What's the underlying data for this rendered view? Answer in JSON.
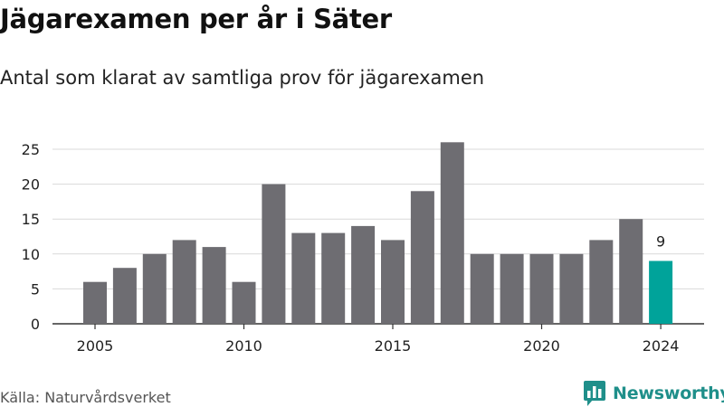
{
  "header": {
    "title": "Jägarexamen per år i Säter",
    "subtitle": "Antal som klarat av samtliga prov för jägarexamen"
  },
  "footer": {
    "source": "Källa: Naturvårdsverket",
    "brand": "Newsworthy",
    "brand_icon": "bar-chart-speech-bubble-icon"
  },
  "colors": {
    "bar": "#6e6d72",
    "highlight": "#00a39a",
    "grid": "#d9d9d9",
    "axis": "#333333",
    "brand": "#1f8f8a"
  },
  "chart_data": {
    "type": "bar",
    "title": "Jägarexamen per år i Säter",
    "subtitle": "Antal som klarat av samtliga prov för jägarexamen",
    "xlabel": "",
    "ylabel": "",
    "categories": [
      2005,
      2006,
      2007,
      2008,
      2009,
      2010,
      2011,
      2012,
      2013,
      2014,
      2015,
      2016,
      2017,
      2018,
      2019,
      2020,
      2021,
      2022,
      2023,
      2024
    ],
    "values": [
      6,
      8,
      10,
      12,
      11,
      6,
      20,
      13,
      13,
      14,
      12,
      19,
      26,
      10,
      10,
      10,
      10,
      12,
      15,
      9
    ],
    "highlight_category": 2024,
    "data_labels": [
      {
        "category": 2024,
        "text": "9"
      }
    ],
    "x_tick_labels": [
      "2005",
      "2010",
      "2015",
      "2020",
      "2024"
    ],
    "y_ticks": [
      0,
      5,
      10,
      15,
      20,
      25
    ],
    "y_tick_labels": [
      "0",
      "5",
      "10",
      "15",
      "20",
      "25"
    ],
    "ylim": [
      0,
      26
    ],
    "grid": true,
    "legend": "none"
  }
}
